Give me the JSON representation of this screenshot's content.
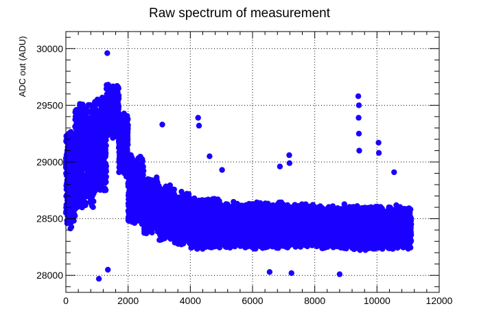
{
  "chart_data": {
    "type": "scatter",
    "title": "Raw spectrum of measurement",
    "xlabel": "",
    "ylabel": "ADC out (ADU)",
    "xlim": [
      0,
      12000
    ],
    "ylim": [
      27850,
      30150
    ],
    "x_ticks": [
      0,
      2000,
      4000,
      6000,
      8000,
      10000,
      12000
    ],
    "y_ticks": [
      28000,
      28500,
      29000,
      29500,
      30000
    ],
    "grid": true,
    "legend": "none",
    "n_points": 11100,
    "series": [
      {
        "marker_color": "#1a00ff",
        "line_color": "#555555",
        "segments": [
          {
            "x_range": [
              0,
              300
            ],
            "mean": 28850,
            "spread": 480
          },
          {
            "x_range": [
              300,
              900
            ],
            "mean": 29050,
            "spread": 500
          },
          {
            "x_range": [
              900,
              1300
            ],
            "mean": 29150,
            "spread": 450
          },
          {
            "x_range": [
              1300,
              1700
            ],
            "mean": 29450,
            "spread": 260
          },
          {
            "x_range": [
              1700,
              2000
            ],
            "mean": 29150,
            "spread": 300
          },
          {
            "x_range": [
              2000,
              2500
            ],
            "mean": 28750,
            "spread": 320
          },
          {
            "x_range": [
              2500,
              3000
            ],
            "mean": 28620,
            "spread": 260
          },
          {
            "x_range": [
              3000,
              3500
            ],
            "mean": 28560,
            "spread": 260
          },
          {
            "x_range": [
              3500,
              4000
            ],
            "mean": 28500,
            "spread": 240
          },
          {
            "x_range": [
              4000,
              5000
            ],
            "mean": 28460,
            "spread": 230
          },
          {
            "x_range": [
              5000,
              7000
            ],
            "mean": 28440,
            "spread": 210
          },
          {
            "x_range": [
              7000,
              9000
            ],
            "mean": 28430,
            "spread": 200
          },
          {
            "x_range": [
              9000,
              11100
            ],
            "mean": 28420,
            "spread": 200
          }
        ],
        "outliers": [
          {
            "x": 1330,
            "y": 29960
          },
          {
            "x": 1060,
            "y": 27970
          },
          {
            "x": 1350,
            "y": 28050
          },
          {
            "x": 4250,
            "y": 29390
          },
          {
            "x": 4280,
            "y": 29320
          },
          {
            "x": 3100,
            "y": 29330
          },
          {
            "x": 9400,
            "y": 29580
          },
          {
            "x": 9420,
            "y": 29500
          },
          {
            "x": 9410,
            "y": 29390
          },
          {
            "x": 9420,
            "y": 29250
          },
          {
            "x": 9430,
            "y": 29100
          },
          {
            "x": 10050,
            "y": 29170
          },
          {
            "x": 10060,
            "y": 29080
          },
          {
            "x": 7180,
            "y": 29060
          },
          {
            "x": 7190,
            "y": 28990
          },
          {
            "x": 6550,
            "y": 28030
          },
          {
            "x": 7250,
            "y": 28020
          },
          {
            "x": 8800,
            "y": 28010
          },
          {
            "x": 10550,
            "y": 28910
          },
          {
            "x": 6880,
            "y": 28960
          },
          {
            "x": 5020,
            "y": 28930
          },
          {
            "x": 4620,
            "y": 29050
          }
        ]
      }
    ]
  }
}
